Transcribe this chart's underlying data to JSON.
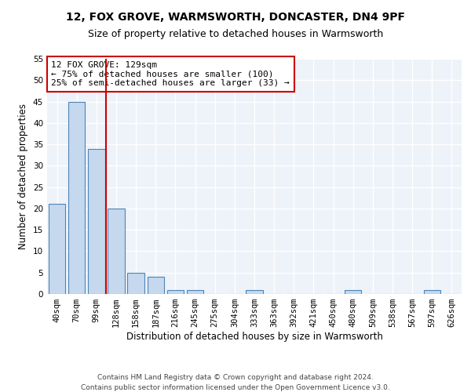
{
  "title": "12, FOX GROVE, WARMSWORTH, DONCASTER, DN4 9PF",
  "subtitle": "Size of property relative to detached houses in Warmsworth",
  "xlabel": "Distribution of detached houses by size in Warmsworth",
  "ylabel": "Number of detached properties",
  "categories": [
    "40sqm",
    "70sqm",
    "99sqm",
    "128sqm",
    "158sqm",
    "187sqm",
    "216sqm",
    "245sqm",
    "275sqm",
    "304sqm",
    "333sqm",
    "363sqm",
    "392sqm",
    "421sqm",
    "450sqm",
    "480sqm",
    "509sqm",
    "538sqm",
    "567sqm",
    "597sqm",
    "626sqm"
  ],
  "values": [
    21,
    45,
    34,
    20,
    5,
    4,
    1,
    1,
    0,
    0,
    1,
    0,
    0,
    0,
    0,
    1,
    0,
    0,
    0,
    1,
    0
  ],
  "bar_color": "#c5d8ed",
  "bar_edge_color": "#4a86b8",
  "property_line_x": 3,
  "property_line_color": "#cc0000",
  "annotation_text": "12 FOX GROVE: 129sqm\n← 75% of detached houses are smaller (100)\n25% of semi-detached houses are larger (33) →",
  "annotation_box_color": "#cc0000",
  "ylim": [
    0,
    55
  ],
  "yticks": [
    0,
    5,
    10,
    15,
    20,
    25,
    30,
    35,
    40,
    45,
    50,
    55
  ],
  "footer_line1": "Contains HM Land Registry data © Crown copyright and database right 2024.",
  "footer_line2": "Contains public sector information licensed under the Open Government Licence v3.0.",
  "background_color": "#eef2f9",
  "grid_color": "#ffffff",
  "title_fontsize": 10,
  "subtitle_fontsize": 9,
  "axis_label_fontsize": 8.5,
  "tick_fontsize": 7.5,
  "footer_fontsize": 6.5,
  "annotation_fontsize": 8
}
